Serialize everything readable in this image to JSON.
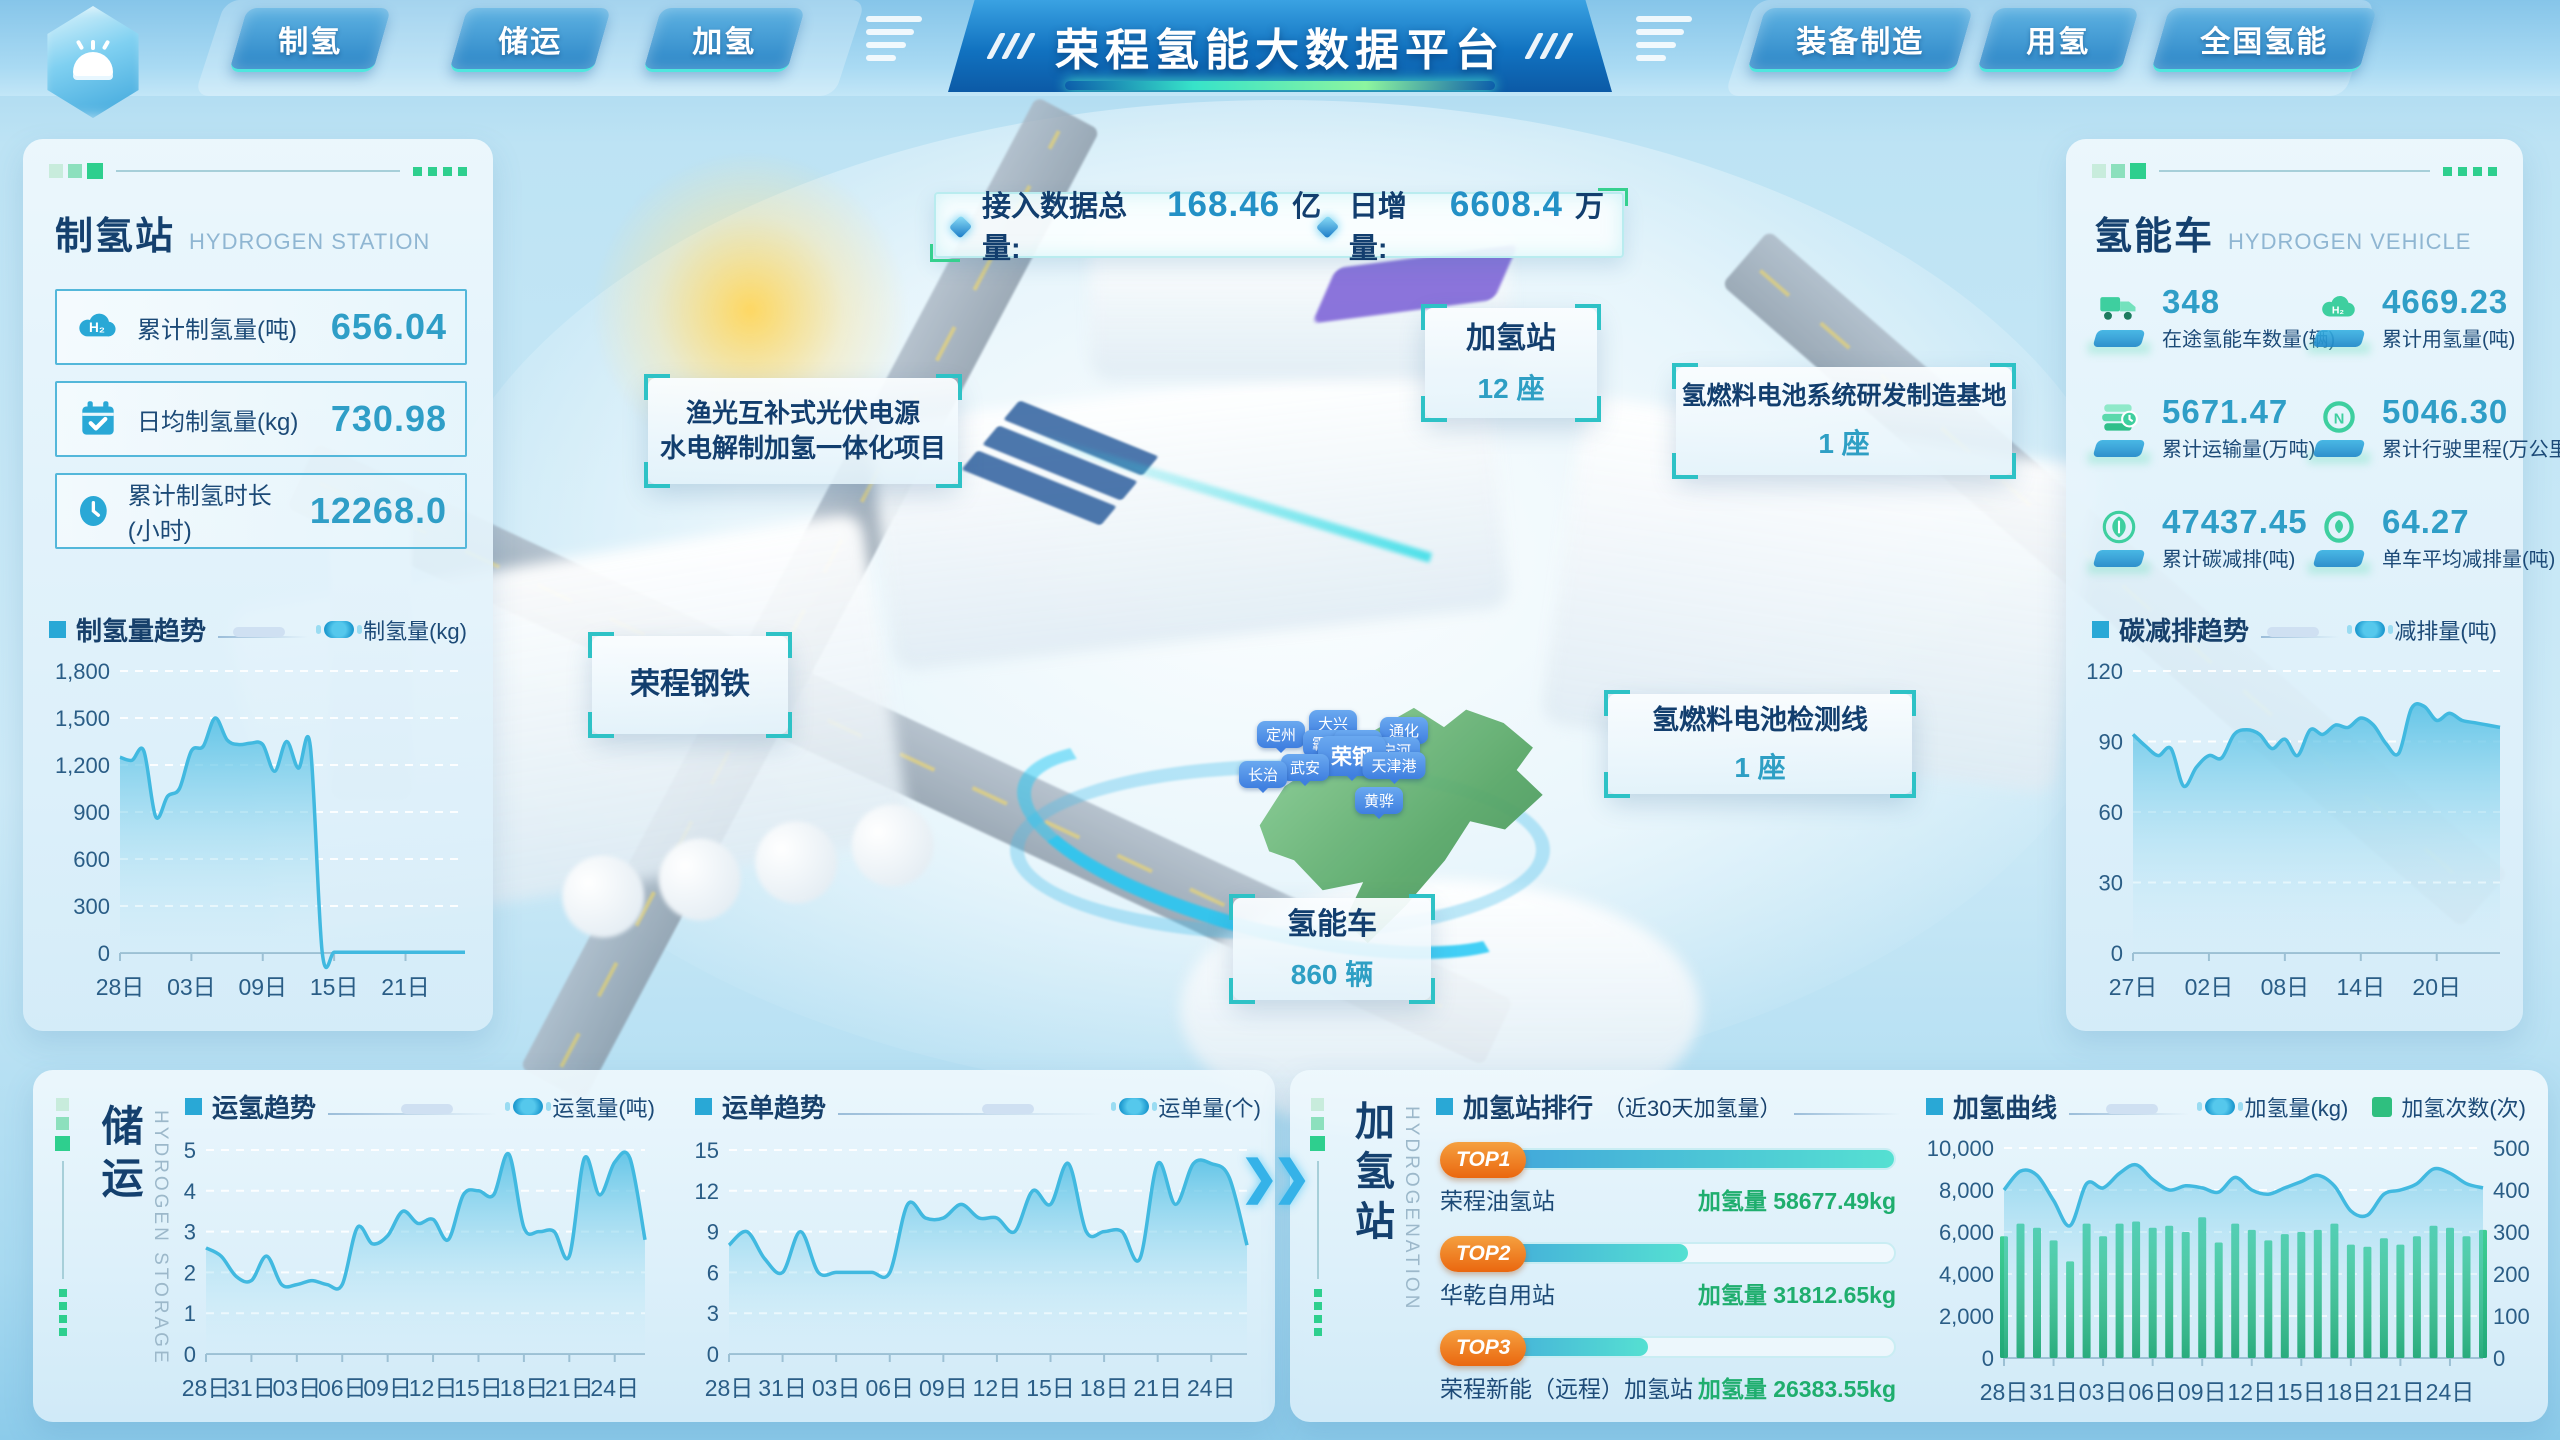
{
  "header": {
    "title": "荣程氢能大数据平台",
    "tabs_left": [
      "制氢",
      "储运",
      "加氢"
    ],
    "tabs_right": [
      "装备制造",
      "用氢",
      "全国氢能"
    ]
  },
  "banner": {
    "total_label": "接入数据总量:",
    "total_value": "168.46",
    "total_unit": "亿",
    "daily_label": "日增量:",
    "daily_value": "6608.4",
    "daily_unit": "万"
  },
  "left_panel": {
    "title": "制氢站",
    "subtitle": "HYDROGEN STATION",
    "stats": [
      {
        "icon": "h2-cloud-icon",
        "label": "累计制氢量(吨)",
        "value": "656.04"
      },
      {
        "icon": "calendar-check-icon",
        "label": "日均制氢量(kg)",
        "value": "730.98"
      },
      {
        "icon": "clock-icon",
        "label": "累计制氢时长(小时)",
        "value": "12268.0"
      }
    ],
    "chart_title": "制氢量趋势",
    "legend": "制氢量(kg)"
  },
  "right_panel": {
    "title": "氢能车",
    "subtitle": "HYDROGEN VEHICLE",
    "stats": [
      {
        "icon": "truck-icon",
        "value": "348",
        "label": "在途氢能车数量(辆)"
      },
      {
        "icon": "h2-cloud-icon",
        "value": "4669.23",
        "label": "累计用氢量(吨)"
      },
      {
        "icon": "layers-icon",
        "value": "5671.47",
        "label": "累计运输量(万吨)"
      },
      {
        "icon": "gauge-icon",
        "value": "5046.30",
        "label": "累计行驶里程(万公里)"
      },
      {
        "icon": "leaf-icon",
        "value": "47437.45",
        "label": "累计碳减排(吨)"
      },
      {
        "icon": "leaf-coin-icon",
        "value": "64.27",
        "label": "单车平均减排量(吨)"
      }
    ],
    "chart_title": "碳减排趋势",
    "legend": "减排量(吨)"
  },
  "scene": {
    "callouts": {
      "yuguang_line1": "渔光互补式光伏电源",
      "yuguang_line2": "水电解制加氢一体化项目",
      "steel": "荣程钢铁",
      "station_name": "加氢站",
      "station_value": "12 座",
      "base_name": "氢燃料电池系统研发制造基地",
      "base_value": "1 座",
      "detect_name": "氢燃料电池检测线",
      "detect_value": "1 座",
      "vehicle_name": "氢能车",
      "vehicle_value": "860 辆"
    },
    "map_pins": [
      "定州",
      "大兴",
      "通化",
      "霸州",
      "蓟州",
      "宁河",
      "荣钢",
      "天津港",
      "武安",
      "长治",
      "黄骅"
    ]
  },
  "storage_panel": {
    "vtitle": "储运",
    "ven": "HYDROGEN STORAGE",
    "chart1_title": "运氢趋势",
    "chart1_legend": "运氢量(吨)",
    "chart2_title": "运单趋势",
    "chart2_legend": "运单量(个)"
  },
  "station_panel": {
    "vtitle": "加氢站",
    "ven": "HYDROGENATION",
    "ranking_title": "加氢站排行",
    "ranking_subtitle": "（近30天加氢量）",
    "rows": [
      {
        "rank": "TOP1",
        "name": "荣程油氢站",
        "value_label": "加氢量",
        "value": "58677.49kg",
        "pct": 100
      },
      {
        "rank": "TOP2",
        "name": "华乾自用站",
        "value_label": "加氢量",
        "value": "31812.65kg",
        "pct": 54
      },
      {
        "rank": "TOP3",
        "name": "荣程新能（远程）加氢站",
        "value_label": "加氢量",
        "value": "26383.55kg",
        "pct": 45
      }
    ],
    "chart_title": "加氢曲线",
    "legend_line": "加氢量(kg)",
    "legend_bar": "加氢次数(次)"
  },
  "colors": {
    "accent_blue": "#2e9fc4",
    "navy": "#1b4a78",
    "green": "#2fbf7f",
    "orange": "#ee7a1e",
    "line_blue": "#41b9e0"
  },
  "chart_data": [
    {
      "id": "prod",
      "type": "area",
      "title": "制氢量趋势",
      "legend": [
        "制氢量(kg)"
      ],
      "x_labels": [
        "28日",
        "03日",
        "09日",
        "15日",
        "21日"
      ],
      "x_label_idx": [
        0,
        6,
        12,
        18,
        24
      ],
      "ylim": [
        0,
        1800
      ],
      "yticks": [
        0,
        300,
        600,
        900,
        1200,
        1500,
        1800
      ],
      "ytick_labels": [
        "0",
        "300",
        "600",
        "900",
        "1,200",
        "1,500",
        "1,800"
      ],
      "series": [
        {
          "name": "制氢量(kg)",
          "type": "area",
          "axis": "left",
          "values": [
            1250,
            1230,
            1290,
            870,
            1000,
            1050,
            1290,
            1320,
            1500,
            1360,
            1330,
            1340,
            1330,
            1160,
            1350,
            1180,
            1320,
            5,
            5,
            5,
            5,
            5,
            5,
            5,
            5,
            5,
            5,
            5,
            5,
            5
          ]
        }
      ]
    },
    {
      "id": "carbon",
      "type": "area",
      "title": "碳减排趋势",
      "legend": [
        "减排量(吨)"
      ],
      "x_labels": [
        "27日",
        "02日",
        "08日",
        "14日",
        "20日"
      ],
      "x_label_idx": [
        0,
        6,
        12,
        18,
        24
      ],
      "ylim": [
        0,
        120
      ],
      "yticks": [
        0,
        30,
        60,
        90,
        120
      ],
      "ytick_labels": [
        "0",
        "30",
        "60",
        "90",
        "120"
      ],
      "series": [
        {
          "name": "减排量(吨)",
          "type": "area",
          "axis": "left",
          "values": [
            93,
            88,
            84,
            87,
            71,
            79,
            84,
            83,
            93,
            95,
            93,
            87,
            91,
            84,
            95,
            93,
            97,
            96,
            100,
            97,
            89,
            85,
            104,
            105,
            99,
            102,
            99,
            98,
            97,
            96
          ]
        }
      ]
    },
    {
      "id": "transport",
      "type": "area",
      "title": "运氢趋势",
      "legend": [
        "运氢量(吨)"
      ],
      "x_labels": [
        "28日",
        "31日",
        "03日",
        "06日",
        "09日",
        "12日",
        "15日",
        "18日",
        "21日",
        "24日"
      ],
      "x_label_idx": [
        0,
        3,
        6,
        9,
        12,
        15,
        18,
        21,
        24,
        27
      ],
      "ylim": [
        0,
        5
      ],
      "yticks": [
        0,
        1,
        2,
        3,
        4,
        5
      ],
      "ytick_labels": [
        "0",
        "1",
        "2",
        "3",
        "4",
        "5"
      ],
      "series": [
        {
          "name": "运氢量(吨)",
          "type": "area",
          "axis": "left",
          "values": [
            2.6,
            2.4,
            1.9,
            1.8,
            2.4,
            1.7,
            1.7,
            1.8,
            1.7,
            1.7,
            3.1,
            2.7,
            2.9,
            3.5,
            3.2,
            3.3,
            2.8,
            3.9,
            4.0,
            3.9,
            4.9,
            3.1,
            3.0,
            3.0,
            2.4,
            4.8,
            3.9,
            4.7,
            4.8,
            2.8
          ]
        }
      ]
    },
    {
      "id": "waybill",
      "type": "area",
      "title": "运单趋势",
      "legend": [
        "运单量(个)"
      ],
      "x_labels": [
        "28日",
        "31日",
        "03日",
        "06日",
        "09日",
        "12日",
        "15日",
        "18日",
        "21日",
        "24日"
      ],
      "x_label_idx": [
        0,
        3,
        6,
        9,
        12,
        15,
        18,
        21,
        24,
        27
      ],
      "ylim": [
        0,
        15
      ],
      "yticks": [
        0,
        3,
        6,
        9,
        12,
        15
      ],
      "ytick_labels": [
        "0",
        "3",
        "6",
        "9",
        "12",
        "15"
      ],
      "series": [
        {
          "name": "运单量(个)",
          "type": "area",
          "axis": "left",
          "values": [
            8,
            9,
            7,
            6,
            9,
            6,
            6,
            6,
            6,
            6,
            11,
            10,
            10,
            11,
            10,
            10,
            9,
            12,
            11,
            14,
            9,
            9,
            9,
            7,
            14,
            11,
            14,
            14,
            13,
            8
          ]
        }
      ]
    },
    {
      "id": "refuel",
      "type": "combo",
      "title": "加氢曲线",
      "legend": [
        "加氢量(kg)",
        "加氢次数(次)"
      ],
      "x_labels": [
        "28日",
        "31日",
        "03日",
        "06日",
        "09日",
        "12日",
        "15日",
        "18日",
        "21日",
        "24日"
      ],
      "x_label_idx": [
        0,
        3,
        6,
        9,
        12,
        15,
        18,
        21,
        24,
        27
      ],
      "ylim": [
        0,
        10000
      ],
      "yticks": [
        0,
        2000,
        4000,
        6000,
        8000,
        10000
      ],
      "ytick_labels": [
        "0",
        "2,000",
        "4,000",
        "6,000",
        "8,000",
        "10,000"
      ],
      "ylim2": [
        0,
        500
      ],
      "y2ticks": [
        0,
        100,
        200,
        300,
        400,
        500
      ],
      "y2tick_labels": [
        "0",
        "100",
        "200",
        "300",
        "400",
        "500"
      ],
      "series": [
        {
          "name": "加氢次数(次)",
          "type": "bar",
          "axis": "right",
          "values": [
            290,
            320,
            310,
            280,
            230,
            320,
            290,
            320,
            325,
            310,
            315,
            300,
            335,
            275,
            320,
            305,
            280,
            295,
            300,
            305,
            320,
            270,
            265,
            285,
            270,
            290,
            315,
            310,
            290,
            305
          ]
        },
        {
          "name": "加氢量(kg)",
          "type": "area",
          "axis": "left",
          "values": [
            8000,
            8900,
            8700,
            7500,
            6300,
            8300,
            8100,
            8800,
            9200,
            8500,
            8000,
            8200,
            8100,
            7900,
            8600,
            8000,
            7800,
            8100,
            8400,
            8700,
            8200,
            7000,
            6800,
            7800,
            8000,
            8300,
            9000,
            8800,
            8300,
            8100
          ]
        }
      ]
    },
    {
      "id": "station-ranking",
      "type": "bar",
      "title": "加氢站排行（近30天加氢量）",
      "categories": [
        "荣程油氢站",
        "华乾自用站",
        "荣程新能（远程）加氢站"
      ],
      "values": [
        58677.49,
        31812.65,
        26383.55
      ],
      "unit": "kg"
    }
  ]
}
